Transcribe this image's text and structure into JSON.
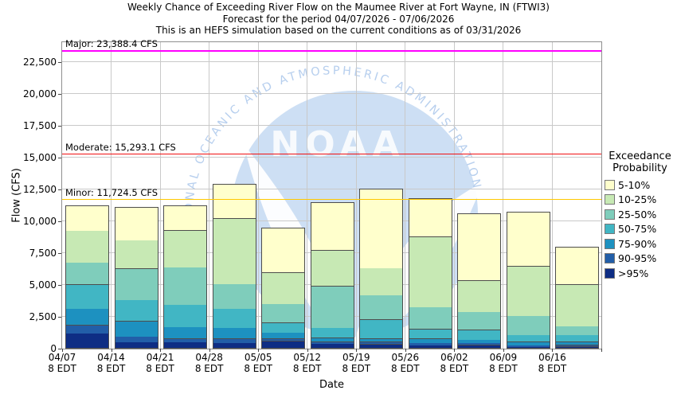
{
  "title": {
    "line1": "Weekly Chance of Exceeding River Flow on the Maumee River at Fort Wayne, IN (FTWI3)",
    "line2": "Forecast for the period 04/07/2026 - 07/06/2026",
    "line3": "This is an HEFS simulation based on the current conditions as of 03/31/2026"
  },
  "axes": {
    "ylabel": "Flow (CFS)",
    "xlabel": "Date",
    "yticks": [
      {
        "value": 0,
        "label": "0"
      },
      {
        "value": 2500,
        "label": "2,500"
      },
      {
        "value": 5000,
        "label": "5,000"
      },
      {
        "value": 7500,
        "label": "7,500"
      },
      {
        "value": 10000,
        "label": "10,000"
      },
      {
        "value": 12500,
        "label": "12,500"
      },
      {
        "value": 15000,
        "label": "15,000"
      },
      {
        "value": 17500,
        "label": "17,500"
      },
      {
        "value": 20000,
        "label": "20,000"
      },
      {
        "value": 22500,
        "label": "22,500"
      }
    ]
  },
  "watermark": {
    "noaa": "NOAA",
    "ring_text": "NATIONAL OCEANIC AND ATMOSPHERIC ADMINISTRATION"
  },
  "legend": {
    "title_line1": "Exceedance",
    "title_line2": "Probability",
    "items": [
      {
        "label": "5-10%",
        "color": "#ffffcc"
      },
      {
        "label": "10-25%",
        "color": "#c7e9b4"
      },
      {
        "label": "25-50%",
        "color": "#7fcdbb"
      },
      {
        "label": "50-75%",
        "color": "#41b6c4"
      },
      {
        "label": "75-90%",
        "color": "#1d91c0"
      },
      {
        "label": "90-95%",
        "color": "#225ea8"
      },
      {
        "label": ">95%",
        "color": "#0e2d84"
      }
    ]
  },
  "chart_data": {
    "type": "bar",
    "stacked": true,
    "title": "Weekly Chance of Exceeding River Flow on the Maumee River at Fort Wayne, IN (FTWI3)",
    "xlabel": "Date",
    "ylabel": "Flow (CFS)",
    "ylim": [
      0,
      24062
    ],
    "grid": true,
    "legend_position": "right",
    "categories": [
      "04/07",
      "04/14",
      "04/21",
      "04/28",
      "05/05",
      "05/12",
      "05/19",
      "05/26",
      "06/02",
      "06/09",
      "06/16"
    ],
    "category_sub_label": "8 EDT",
    "series": [
      {
        "name": ">95%",
        "color": "#0e2d84",
        "cumulative_top_cfs": [
          1200,
          500,
          500,
          460,
          600,
          390,
          355,
          270,
          290,
          145,
          165
        ]
      },
      {
        "name": "90-95%",
        "color": "#225ea8",
        "cumulative_top_cfs": [
          1870,
          950,
          810,
          810,
          810,
          560,
          560,
          440,
          440,
          270,
          310
        ]
      },
      {
        "name": "75-90%",
        "color": "#1d91c0",
        "cumulative_top_cfs": [
          3150,
          2170,
          1690,
          1650,
          1270,
          855,
          810,
          790,
          705,
          545,
          545
        ]
      },
      {
        "name": "50-75%",
        "color": "#41b6c4",
        "cumulative_top_cfs": [
          5040,
          3830,
          3460,
          3150,
          2060,
          1645,
          2310,
          1540,
          1480,
          1080,
          1080
        ]
      },
      {
        "name": "25-50%",
        "color": "#7fcdbb",
        "cumulative_top_cfs": [
          6750,
          6290,
          6380,
          5080,
          3520,
          4920,
          4210,
          3250,
          2890,
          2580,
          1750
        ]
      },
      {
        "name": "10-25%",
        "color": "#c7e9b4",
        "cumulative_top_cfs": [
          9250,
          8520,
          9290,
          10230,
          5980,
          7730,
          6330,
          8790,
          5355,
          6480,
          5040
        ]
      },
      {
        "name": "5-10%",
        "color": "#ffffcc",
        "cumulative_top_cfs": [
          11170,
          11060,
          11170,
          12850,
          9420,
          11450,
          12480,
          11720,
          10540,
          10680,
          7950
        ]
      }
    ],
    "thresholds": [
      {
        "name": "Major",
        "label": "Major: 23,388.4 CFS",
        "value_cfs": 23388.4,
        "color": "#ff00ff"
      },
      {
        "name": "Moderate",
        "label": "Moderate: 15,293.1 CFS",
        "value_cfs": 15293.1,
        "color": "#f01011"
      },
      {
        "name": "Minor",
        "label": "Minor: 11,724.5 CFS",
        "value_cfs": 11724.5,
        "color": "#ffc800"
      }
    ]
  }
}
